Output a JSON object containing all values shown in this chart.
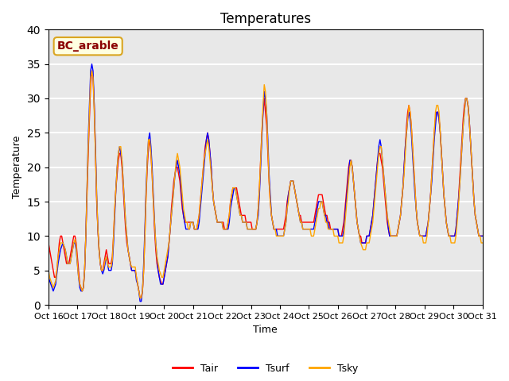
{
  "title": "Temperatures",
  "xlabel": "Time",
  "ylabel": "Temperature",
  "legend_label": "BC_arable",
  "series_labels": [
    "Tair",
    "Tsurf",
    "Tsky"
  ],
  "series_colors": [
    "red",
    "blue",
    "orange"
  ],
  "ylim": [
    0,
    40
  ],
  "xlim": [
    0,
    360
  ],
  "xtick_labels": [
    "Oct 16",
    "Oct 17",
    "Oct 18",
    "Oct 19",
    "Oct 20",
    "Oct 21",
    "Oct 22",
    "Oct 23",
    "Oct 24",
    "Oct 25",
    "Oct 26",
    "Oct 27",
    "Oct 28",
    "Oct 29",
    "Oct 30",
    "Oct 31"
  ],
  "xtick_positions": [
    0,
    24,
    48,
    72,
    96,
    120,
    144,
    168,
    192,
    216,
    240,
    264,
    288,
    312,
    336,
    360
  ],
  "background_color": "#e8e8e8",
  "grid_color": "white",
  "linewidth": 1.0
}
